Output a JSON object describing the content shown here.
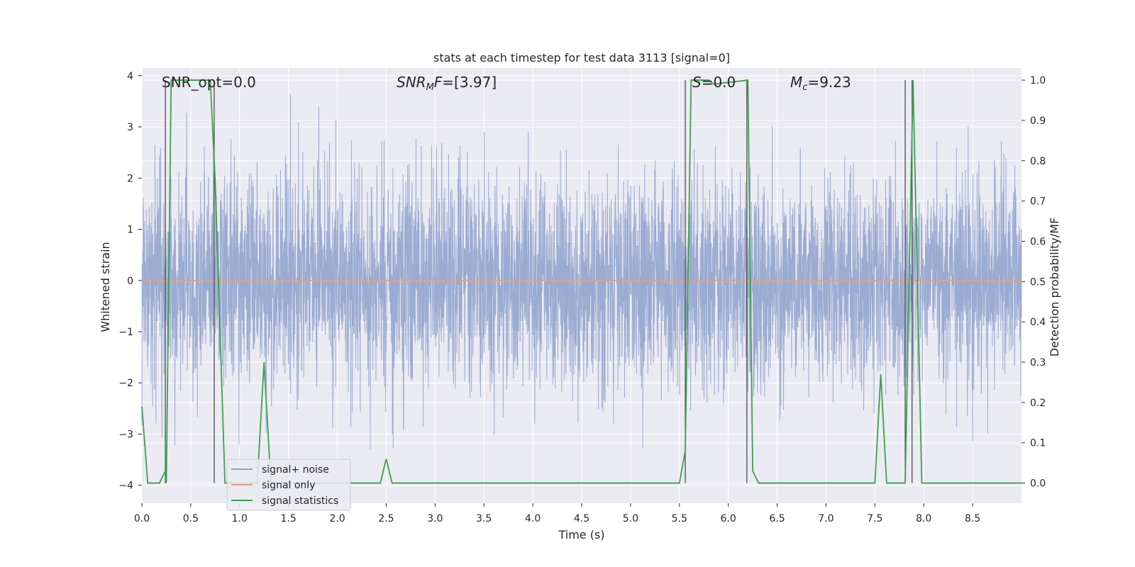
{
  "chart_data": {
    "type": "line",
    "title": "stats at each timestep for test data 3113 [signal=0]",
    "xlabel": "Time (s)",
    "ylabel": "Whitened strain",
    "y2label": "Detection probability/MF",
    "xlim": [
      0.0,
      9.0
    ],
    "ylim": [
      -4.35,
      4.15
    ],
    "y2lim": [
      -0.05,
      1.03
    ],
    "xticks": [
      "0.0",
      "0.5",
      "1.0",
      "1.5",
      "2.0",
      "2.5",
      "3.0",
      "3.5",
      "4.0",
      "4.5",
      "5.0",
      "5.5",
      "6.0",
      "6.5",
      "7.0",
      "7.5",
      "8.0",
      "8.5"
    ],
    "yticks": [
      "4",
      "3",
      "2",
      "1",
      "0",
      "−1",
      "−2",
      "−3",
      "−4"
    ],
    "y2ticks": [
      "1.0",
      "0.9",
      "0.8",
      "0.7",
      "0.6",
      "0.5",
      "0.4",
      "0.3",
      "0.2",
      "0.1",
      "0.0"
    ],
    "annotations": [
      {
        "name": "snr-opt",
        "prefix": "SNR_opt=",
        "value": "0.0"
      },
      {
        "name": "snr-mf",
        "prefix": "SNR",
        "sub": "M",
        "suffix": "F=",
        "value": "[3.97]"
      },
      {
        "name": "s-value",
        "prefix": "S=",
        "value": "0.0"
      },
      {
        "name": "chirp-mass",
        "prefix": "M",
        "sub": "c",
        "suffix": "=",
        "value": "9.23"
      }
    ],
    "legend": {
      "position": "lower-left",
      "entries": [
        "signal+ noise",
        "signal only",
        "signal statistics"
      ]
    },
    "series": [
      {
        "name": "signal+ noise",
        "color": "#8da0cb",
        "noise_seed": 3113,
        "envelope": [
          -3.3,
          3.8
        ]
      },
      {
        "name": "signal only",
        "color": "#e6a07a",
        "y": 0
      },
      {
        "name": "signal statistics",
        "color": "#3ea04e",
        "axis": "right",
        "x": [
          0.0,
          0.06,
          0.18,
          0.24,
          0.25,
          0.3,
          0.7,
          0.75,
          0.85,
          1.18,
          1.25,
          1.32,
          1.65,
          2.44,
          2.5,
          2.56,
          5.5,
          5.56,
          5.62,
          5.8,
          5.85,
          6.2,
          6.25,
          6.31,
          7.5,
          7.56,
          7.62,
          7.81,
          7.89,
          7.98,
          9.0
        ],
        "y": [
          0.19,
          0.0,
          0.0,
          0.03,
          0.0,
          1.0,
          1.0,
          0.75,
          0.0,
          0.0,
          0.3,
          0.0,
          0.0,
          0.0,
          0.06,
          0.0,
          0.0,
          0.08,
          1.0,
          1.0,
          0.99,
          1.0,
          0.03,
          0.0,
          0.0,
          0.27,
          0.0,
          0.0,
          1.0,
          0.0,
          0.0
        ]
      }
    ],
    "vlines": [
      0.24,
      0.74,
      5.56,
      6.19,
      7.81,
      7.88
    ]
  }
}
